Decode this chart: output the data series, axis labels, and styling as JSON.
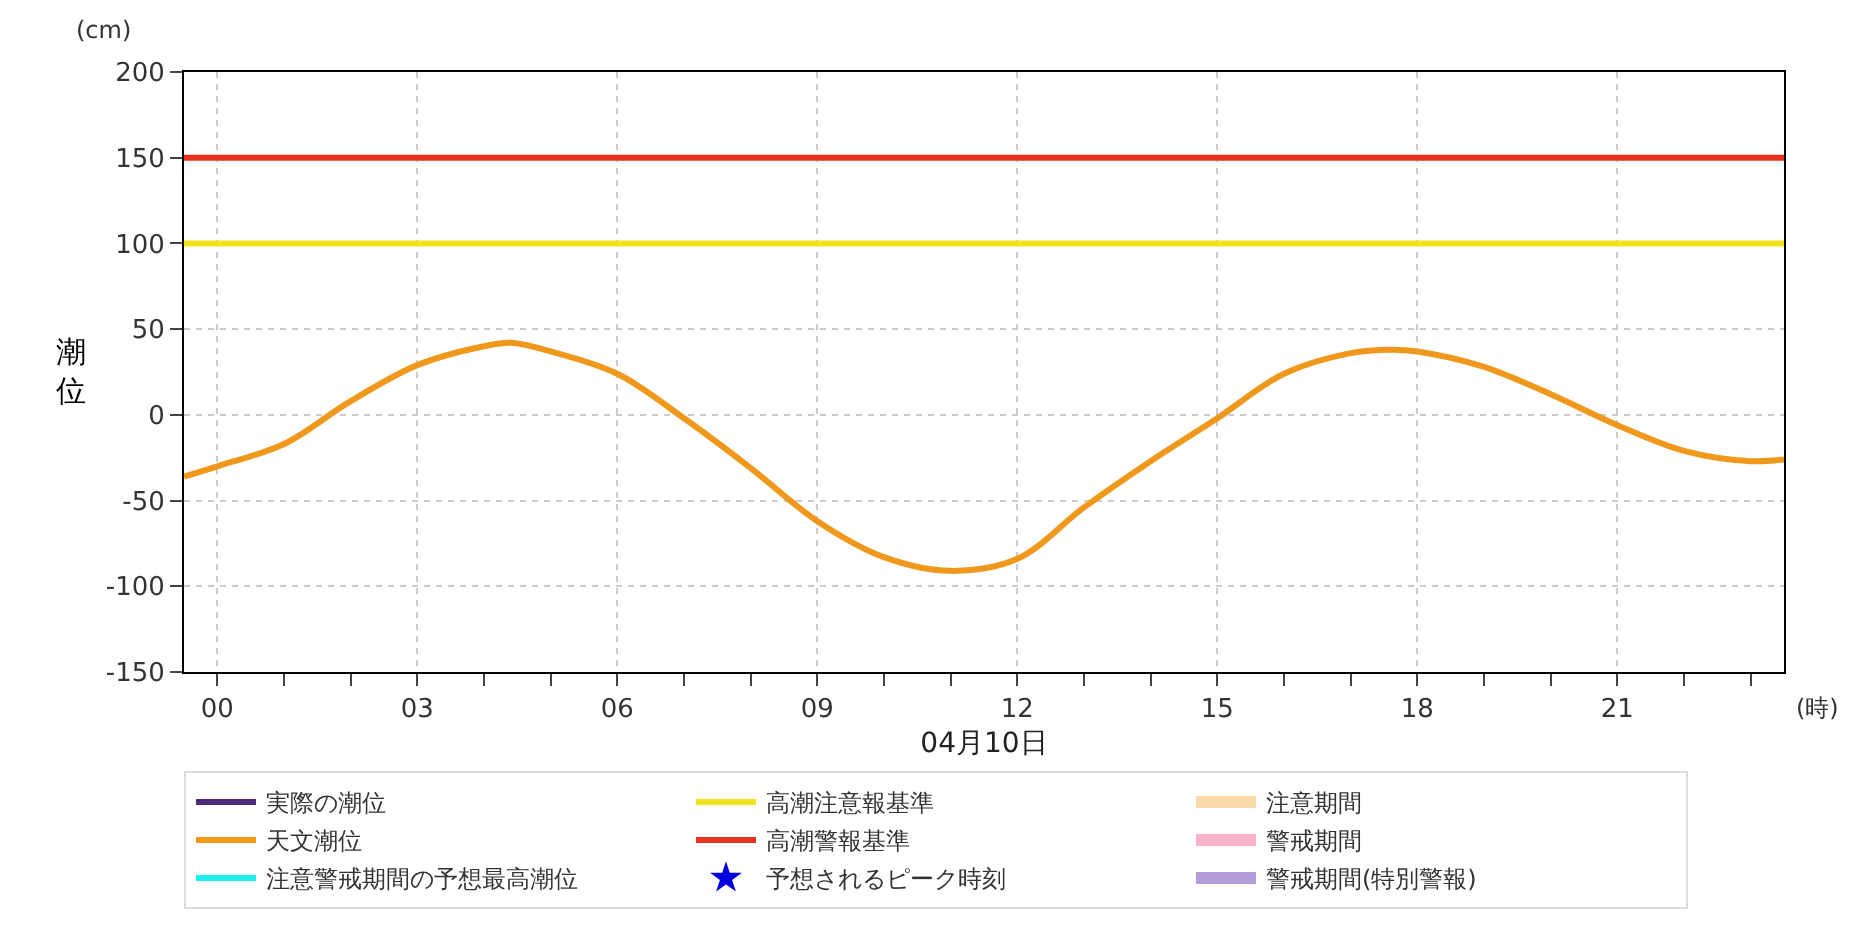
{
  "chart_data": {
    "type": "line",
    "xlabel": "04月10日",
    "ylabel": "潮位",
    "annotations": [
      "(cm)",
      "(時)"
    ],
    "x": [
      -0.5,
      0,
      1,
      2,
      3,
      4,
      4.4,
      5,
      6,
      7,
      8,
      9,
      10,
      11,
      12,
      13,
      14,
      15,
      16,
      17,
      17.6,
      18,
      19,
      20,
      21,
      22,
      23,
      23.5
    ],
    "series": [
      {
        "name": "実際の潮位",
        "color": "#4b2a7b",
        "values": [
          null,
          null,
          null,
          null,
          null,
          null,
          null,
          null,
          null,
          null,
          null,
          null,
          null,
          null,
          null,
          null,
          null,
          null,
          null,
          null,
          null,
          null,
          null,
          null,
          null,
          null,
          null,
          null
        ]
      },
      {
        "name": "天文潮位",
        "color": "#f0981c",
        "values": [
          -36,
          -30,
          -17,
          8,
          29,
          40,
          42,
          37,
          24,
          -2,
          -31,
          -62,
          -83,
          -91,
          -84,
          -54,
          -27,
          -2,
          24,
          36,
          38,
          37,
          28,
          12,
          -6,
          -21,
          -27,
          -26
        ]
      },
      {
        "name": "注意警戒期間の予想最高潮位",
        "color": "#1ff0f0",
        "values": [
          null,
          null,
          null,
          null,
          null,
          null,
          null,
          null,
          null,
          null,
          null,
          null,
          null,
          null,
          null,
          null,
          null,
          null,
          null,
          null,
          null,
          null,
          null,
          null,
          null,
          null,
          null,
          null
        ]
      },
      {
        "name": "予想されるピーク時刻",
        "type": "scatter",
        "marker": "star",
        "color": "#0000e0",
        "values": [
          null,
          null,
          null,
          null,
          null,
          null,
          null,
          null,
          null,
          null,
          null,
          null,
          null,
          null,
          null,
          null,
          null,
          null,
          null,
          null,
          null,
          null,
          null,
          null,
          null,
          null,
          null,
          null
        ]
      },
      {
        "name": "注意期間",
        "type": "area",
        "color": "#fbd9a8",
        "values": [
          null,
          null,
          null,
          null,
          null,
          null,
          null,
          null,
          null,
          null,
          null,
          null,
          null,
          null,
          null,
          null,
          null,
          null,
          null,
          null,
          null,
          null,
          null,
          null,
          null,
          null,
          null,
          null
        ]
      },
      {
        "name": "警戒期間",
        "type": "area",
        "color": "#f9b4c9",
        "values": [
          null,
          null,
          null,
          null,
          null,
          null,
          null,
          null,
          null,
          null,
          null,
          null,
          null,
          null,
          null,
          null,
          null,
          null,
          null,
          null,
          null,
          null,
          null,
          null,
          null,
          null,
          null,
          null
        ]
      },
      {
        "name": "警戒期間(特別警報)",
        "type": "area",
        "color": "#b39ddb",
        "values": [
          null,
          null,
          null,
          null,
          null,
          null,
          null,
          null,
          null,
          null,
          null,
          null,
          null,
          null,
          null,
          null,
          null,
          null,
          null,
          null,
          null,
          null,
          null,
          null,
          null,
          null,
          null,
          null
        ]
      }
    ],
    "ref_lines": [
      {
        "axis": "y",
        "value": 100,
        "label": "高潮注意報基準",
        "color": "#f0e21c"
      },
      {
        "axis": "y",
        "value": 150,
        "label": "高潮警報基準",
        "color": "#e8321e"
      }
    ],
    "xlim": [
      -0.5,
      23.5
    ],
    "xticks": [
      {
        "value": 0,
        "label": "00"
      },
      {
        "value": 1,
        "label": null
      },
      {
        "value": 2,
        "label": null
      },
      {
        "value": 3,
        "label": "03"
      },
      {
        "value": 4,
        "label": null
      },
      {
        "value": 5,
        "label": null
      },
      {
        "value": 6,
        "label": "06"
      },
      {
        "value": 7,
        "label": null
      },
      {
        "value": 8,
        "label": null
      },
      {
        "value": 9,
        "label": "09"
      },
      {
        "value": 10,
        "label": null
      },
      {
        "value": 11,
        "label": null
      },
      {
        "value": 12,
        "label": "12"
      },
      {
        "value": 13,
        "label": null
      },
      {
        "value": 14,
        "label": null
      },
      {
        "value": 15,
        "label": "15"
      },
      {
        "value": 16,
        "label": null
      },
      {
        "value": 17,
        "label": null
      },
      {
        "value": 18,
        "label": "18"
      },
      {
        "value": 19,
        "label": null
      },
      {
        "value": 20,
        "label": null
      },
      {
        "value": 21,
        "label": "21"
      },
      {
        "value": 22,
        "label": null
      },
      {
        "value": 23,
        "label": null
      }
    ],
    "ylim": [
      -150,
      200
    ],
    "yticks": [
      -150,
      -100,
      -50,
      0,
      50,
      100,
      150,
      200
    ],
    "grid": true,
    "legend": "bottom",
    "marker": "none",
    "line_style": "solid"
  }
}
